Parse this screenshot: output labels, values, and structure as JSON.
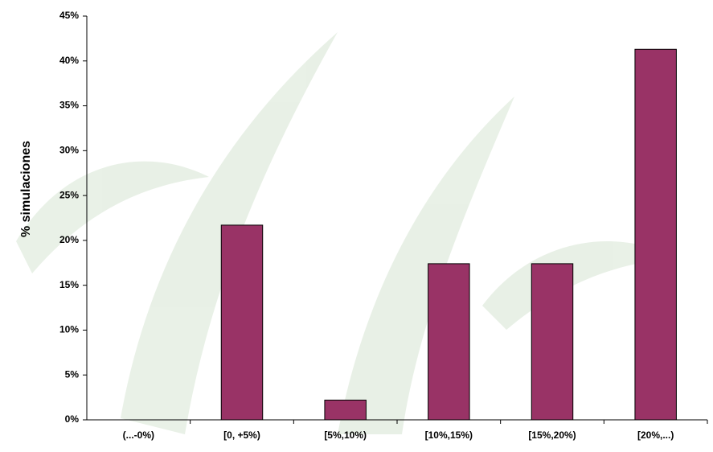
{
  "chart_data": {
    "type": "bar",
    "ylabel": "% simulaciones",
    "categories": [
      "(...-0%)",
      "[0, +5%)",
      "[5%,10%)",
      "[10%,15%)",
      "[15%,20%)",
      "[20%,...)"
    ],
    "values": [
      0,
      21.7,
      2.2,
      17.4,
      17.4,
      41.3
    ],
    "color": "#993366",
    "ylim": [
      0,
      45
    ],
    "yticks": [
      {
        "value": 0,
        "label": "0%"
      },
      {
        "value": 5,
        "label": "5%"
      },
      {
        "value": 10,
        "label": "10%"
      },
      {
        "value": 15,
        "label": "15%"
      },
      {
        "value": 20,
        "label": "20%"
      },
      {
        "value": 25,
        "label": "25%"
      },
      {
        "value": 30,
        "label": "30%"
      },
      {
        "value": 35,
        "label": "35%"
      },
      {
        "value": 40,
        "label": "40%"
      },
      {
        "value": 45,
        "label": "45%"
      }
    ],
    "grid": false
  }
}
